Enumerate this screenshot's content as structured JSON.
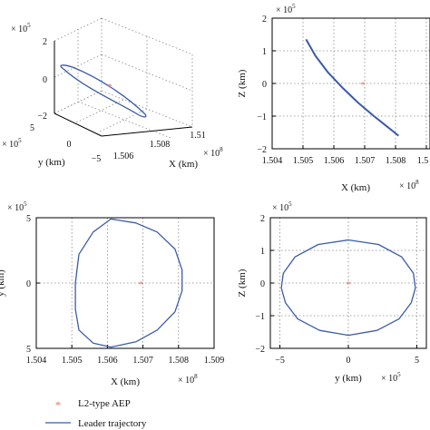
{
  "legend": {
    "aep_label": "L2-type AEP",
    "trajectory_label": "Leader trajectory"
  },
  "colors": {
    "trajectory": "#3b5ba9",
    "aep": "#e8786b",
    "axis": "#000000",
    "grid": "#888888"
  },
  "chart_data": [
    {
      "type": "line",
      "view": "3d",
      "title": "",
      "xlabel": "X (km)",
      "ylabel": "y (km)",
      "zlabel": "",
      "x_scale": "× 10^8",
      "y_scale": "× 10^5",
      "z_scale": "× 10^5",
      "x_scale_text": "× 10",
      "x_scale_exp": "8",
      "y_scale_text": "× 10",
      "y_scale_exp": "5",
      "z_scale_text": "× 10",
      "z_scale_exp": "5",
      "xlim": [
        1.505,
        1.51
      ],
      "ylim": [
        -5,
        5
      ],
      "zlim": [
        -2,
        2
      ],
      "x_ticks": [
        "1.506",
        "1.508",
        "1.51"
      ],
      "y_ticks": [
        "−5",
        "0",
        "5"
      ],
      "z_ticks": [
        "−2",
        "0",
        "2"
      ],
      "grid": true,
      "series": [
        {
          "kind": "line",
          "note": "orbit seen in perspective"
        }
      ],
      "aep_point": {
        "x": 1.50694,
        "y": 0,
        "z": 0
      }
    },
    {
      "type": "line",
      "title": "",
      "xlabel": "X (km)",
      "ylabel": "Z (km)",
      "x_scale_text": "× 10",
      "x_scale_exp": "8",
      "y_scale_text": "× 10",
      "y_scale_exp": "5",
      "xlim": [
        1.504,
        1.509
      ],
      "ylim": [
        -2,
        2
      ],
      "x_ticks": [
        "1.504",
        "1.505",
        "1.506",
        "1.507",
        "1.508",
        "1.5"
      ],
      "y_ticks": [
        "2",
        "1",
        "0",
        "−1",
        "−2"
      ],
      "grid": true,
      "series": [
        {
          "x": [
            1.5051,
            1.5054,
            1.5058,
            1.5063,
            1.5068,
            1.5073,
            1.5077,
            1.5081
          ],
          "y": [
            1.35,
            0.85,
            0.35,
            -0.15,
            -0.6,
            -1.0,
            -1.3,
            -1.6
          ]
        }
      ],
      "aep_point": {
        "x": 1.50694,
        "y": 0
      }
    },
    {
      "type": "line",
      "title": "",
      "xlabel": "X (km)",
      "ylabel": "y (km)",
      "x_scale_text": "× 10",
      "x_scale_exp": "8",
      "y_scale_text": "× 10",
      "y_scale_exp": "5",
      "xlim": [
        1.504,
        1.509
      ],
      "ylim": [
        -5,
        5
      ],
      "x_ticks": [
        "1.504",
        "1.505",
        "1.506",
        "1.507",
        "1.508",
        "1.509"
      ],
      "y_ticks": [
        "5",
        "0",
        "5"
      ],
      "grid": true,
      "series": [
        {
          "x": [
            1.5061,
            1.5068,
            1.5074,
            1.5079,
            1.5081,
            1.5081,
            1.5079,
            1.5074,
            1.5068,
            1.5061,
            1.5056,
            1.5052,
            1.5051,
            1.5051,
            1.5052,
            1.5056,
            1.5061
          ],
          "y": [
            4.9,
            4.6,
            3.9,
            2.6,
            1.0,
            -0.6,
            -2.2,
            -3.6,
            -4.5,
            -4.9,
            -4.6,
            -3.6,
            -2.0,
            0.0,
            2.2,
            3.9,
            4.9
          ]
        }
      ],
      "aep_point": {
        "x": 1.50694,
        "y": 0
      }
    },
    {
      "type": "line",
      "title": "",
      "xlabel": "y (km)",
      "ylabel": "Z (km)",
      "x_scale_text": "× 10",
      "x_scale_exp": "5",
      "y_scale_text": "× 10",
      "y_scale_exp": "5",
      "xlim": [
        -5.7,
        5.7
      ],
      "ylim": [
        -2,
        2
      ],
      "x_ticks": [
        "−5",
        "0",
        "5"
      ],
      "y_ticks": [
        "2",
        "1",
        "0",
        "−1",
        "−2"
      ],
      "grid": true,
      "series": [
        {
          "x": [
            0,
            2.2,
            3.9,
            4.75,
            4.9,
            4.6,
            3.7,
            2.1,
            0,
            -2.1,
            -3.7,
            -4.6,
            -4.9,
            -4.75,
            -3.9,
            -2.2,
            0
          ],
          "y": [
            1.32,
            1.18,
            0.8,
            0.3,
            -0.15,
            -0.6,
            -1.1,
            -1.45,
            -1.6,
            -1.45,
            -1.1,
            -0.6,
            -0.15,
            0.3,
            0.8,
            1.18,
            1.32
          ]
        }
      ],
      "aep_point": {
        "x": 0,
        "y": 0
      }
    }
  ]
}
